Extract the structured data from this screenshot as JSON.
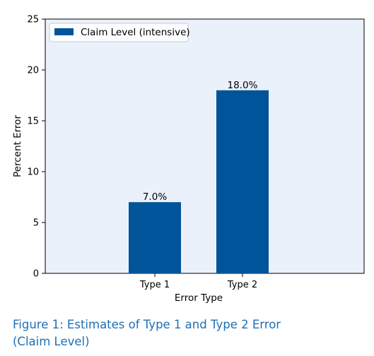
{
  "chart_data": {
    "type": "bar",
    "categories": [
      "Type 1",
      "Type 2"
    ],
    "series": [
      {
        "name": "Claim Level (intensive)",
        "values": [
          7.0,
          18.0
        ],
        "labels": [
          "7.0%",
          "18.0%"
        ],
        "color": "#005499"
      }
    ],
    "title": "",
    "xlabel": "Error Type",
    "ylabel": "Percent Error",
    "ylim": [
      0,
      25
    ],
    "yticks": [
      0,
      5,
      10,
      15,
      20,
      25
    ],
    "grid": false,
    "legend_position": "top-left",
    "plot_background": "#eaf1fb"
  },
  "caption": {
    "line1": "Figure 1: Estimates of Type 1 and Type 2 Error",
    "line2": "(Claim Level)",
    "color": "#1e6fb5"
  }
}
